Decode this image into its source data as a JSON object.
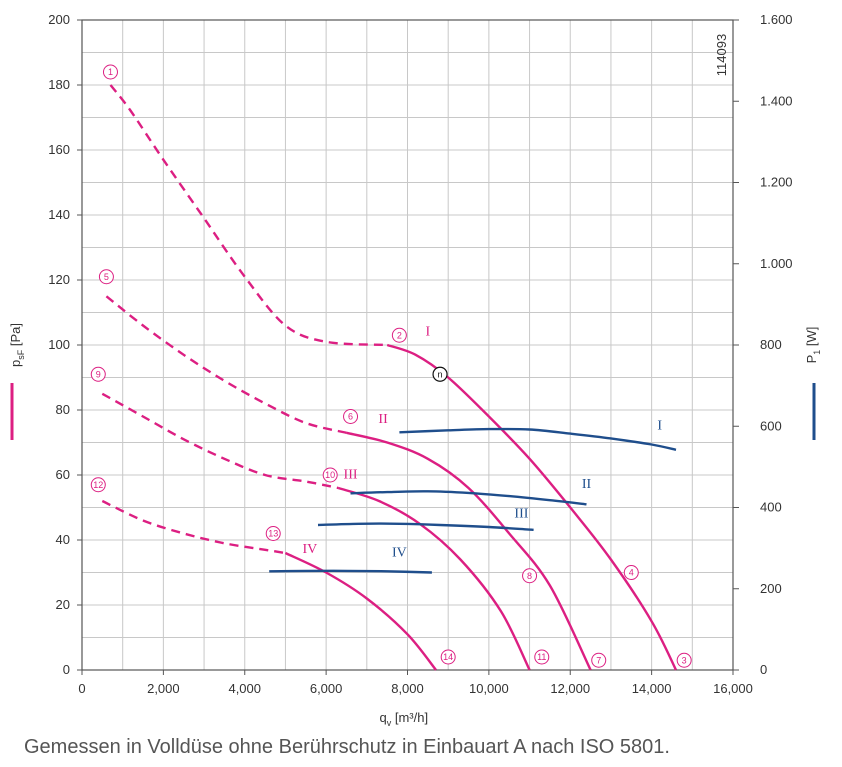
{
  "caption": "Gemessen in Volldüse ohne Berührschutz in Einbauart A nach ISO 5801.",
  "chart_data": {
    "type": "line",
    "id_label": "114093",
    "xlabel": "q_v [m³/h]",
    "ylabel_left": "p_sF [Pa]",
    "ylabel_right": "P_1 [W]",
    "xlim": [
      0,
      16000
    ],
    "ylim_left": [
      0,
      200
    ],
    "ylim_right": [
      0,
      1600
    ],
    "x_ticks": [
      0,
      2000,
      4000,
      6000,
      8000,
      10000,
      12000,
      14000,
      16000
    ],
    "x_tick_labels": [
      "0",
      "2,000",
      "4,000",
      "6,000",
      "8,000",
      "10,000",
      "12,000",
      "14,000",
      "16,000"
    ],
    "y_left_ticks": [
      0,
      20,
      40,
      60,
      80,
      100,
      120,
      140,
      160,
      180,
      200
    ],
    "y_left_tick_labels": [
      "0",
      "20",
      "40",
      "60",
      "80",
      "100",
      "120",
      "140",
      "160",
      "180",
      "200"
    ],
    "y_right_ticks": [
      0,
      200,
      400,
      600,
      800,
      1000,
      1200,
      1400,
      1600
    ],
    "y_right_tick_labels": [
      "0",
      "200",
      "400",
      "600",
      "800",
      "1.000",
      "1.200",
      "1.400",
      "1.600"
    ],
    "grid": true,
    "colors": {
      "pressure": "#dc1f82",
      "power": "#1f4e8c",
      "grid": "#c8c8c8",
      "axis": "#555555"
    },
    "pressure_series": [
      {
        "name": "I",
        "dashed": [
          [
            700,
            180
          ],
          [
            1200,
            172
          ],
          [
            2000,
            157
          ],
          [
            3000,
            139
          ],
          [
            4000,
            121
          ],
          [
            5000,
            106
          ],
          [
            6000,
            101
          ],
          [
            7500,
            100
          ]
        ],
        "solid": [
          [
            7500,
            100
          ],
          [
            8200,
            97
          ],
          [
            9000,
            90
          ],
          [
            10000,
            78
          ],
          [
            11000,
            65
          ],
          [
            12000,
            50
          ],
          [
            13000,
            34
          ],
          [
            14000,
            15
          ],
          [
            14600,
            0
          ]
        ]
      },
      {
        "name": "II",
        "dashed": [
          [
            600,
            115
          ],
          [
            1500,
            106
          ],
          [
            2500,
            97
          ],
          [
            3500,
            89
          ],
          [
            4500,
            82
          ],
          [
            5500,
            76
          ],
          [
            6500,
            73
          ]
        ],
        "solid": [
          [
            6500,
            73
          ],
          [
            7500,
            70
          ],
          [
            8500,
            65
          ],
          [
            9500,
            56
          ],
          [
            10500,
            42
          ],
          [
            11500,
            26
          ],
          [
            12500,
            0
          ]
        ]
      },
      {
        "name": "III",
        "dashed": [
          [
            500,
            85
          ],
          [
            1500,
            78
          ],
          [
            2500,
            71
          ],
          [
            3500,
            65
          ],
          [
            4500,
            60
          ],
          [
            5500,
            58
          ],
          [
            6300,
            56
          ]
        ],
        "solid": [
          [
            6300,
            56
          ],
          [
            7300,
            52
          ],
          [
            8300,
            45
          ],
          [
            9300,
            34
          ],
          [
            10300,
            18
          ],
          [
            11000,
            0
          ]
        ]
      },
      {
        "name": "IV",
        "dashed": [
          [
            500,
            52
          ],
          [
            1500,
            46
          ],
          [
            2500,
            42
          ],
          [
            3500,
            39
          ],
          [
            4500,
            37
          ],
          [
            5000,
            36
          ]
        ],
        "solid": [
          [
            5000,
            36
          ],
          [
            6000,
            30
          ],
          [
            7000,
            22
          ],
          [
            8000,
            11
          ],
          [
            8700,
            0
          ]
        ]
      }
    ],
    "power_series": [
      {
        "name": "I",
        "points": [
          [
            7800,
            585
          ],
          [
            9000,
            590
          ],
          [
            10000,
            593
          ],
          [
            11000,
            592
          ],
          [
            12000,
            582
          ],
          [
            13000,
            570
          ],
          [
            14000,
            555
          ],
          [
            14600,
            542
          ]
        ]
      },
      {
        "name": "II",
        "points": [
          [
            6600,
            435
          ],
          [
            7500,
            438
          ],
          [
            8500,
            440
          ],
          [
            9500,
            436
          ],
          [
            10500,
            428
          ],
          [
            11500,
            418
          ],
          [
            12400,
            408
          ]
        ]
      },
      {
        "name": "III",
        "points": [
          [
            5800,
            357
          ],
          [
            6800,
            360
          ],
          [
            7800,
            360
          ],
          [
            8800,
            357
          ],
          [
            10000,
            352
          ],
          [
            11100,
            345
          ]
        ]
      },
      {
        "name": "IV",
        "points": [
          [
            4600,
            243
          ],
          [
            5500,
            244
          ],
          [
            6500,
            244
          ],
          [
            7500,
            243
          ],
          [
            8600,
            240
          ]
        ]
      }
    ],
    "series_labels": [
      {
        "text": "I",
        "color": "pressure",
        "x": 8500,
        "y": 103
      },
      {
        "text": "II",
        "color": "pressure",
        "x": 7400,
        "y": 76
      },
      {
        "text": "III",
        "color": "pressure",
        "x": 6600,
        "y": 59
      },
      {
        "text": "IV",
        "color": "pressure",
        "x": 5600,
        "y": 36
      },
      {
        "text": "I",
        "color": "power",
        "x": 14200,
        "y": 74
      },
      {
        "text": "II",
        "color": "power",
        "x": 12400,
        "y": 56
      },
      {
        "text": "III",
        "color": "power",
        "x": 10800,
        "y": 47
      },
      {
        "text": "IV",
        "color": "power",
        "x": 7800,
        "y": 35
      }
    ],
    "markers": [
      {
        "text": "1",
        "x": 700,
        "y": 184
      },
      {
        "text": "2",
        "x": 7800,
        "y": 103
      },
      {
        "text": "3",
        "x": 14800,
        "y": 3
      },
      {
        "text": "4",
        "x": 13500,
        "y": 30
      },
      {
        "text": "5",
        "x": 600,
        "y": 121
      },
      {
        "text": "6",
        "x": 6600,
        "y": 78
      },
      {
        "text": "7",
        "x": 12700,
        "y": 3
      },
      {
        "text": "8",
        "x": 11000,
        "y": 29
      },
      {
        "text": "9",
        "x": 400,
        "y": 91
      },
      {
        "text": "10",
        "x": 6100,
        "y": 60
      },
      {
        "text": "11",
        "x": 11300,
        "y": 4
      },
      {
        "text": "12",
        "x": 400,
        "y": 57
      },
      {
        "text": "13",
        "x": 4700,
        "y": 42
      },
      {
        "text": "14",
        "x": 9000,
        "y": 4
      }
    ],
    "operating_point": {
      "text": "n",
      "x": 8800,
      "y": 91
    }
  }
}
